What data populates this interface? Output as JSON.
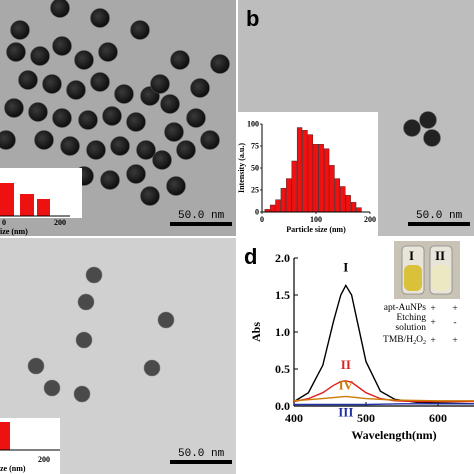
{
  "panels": {
    "a": {
      "scale_bar": "50.0 nm",
      "hist_xtick_0": "0",
      "hist_xtick_200": "200",
      "hist_xlabel_fragment": "ize (nm)"
    },
    "b": {
      "label": "b",
      "scale_bar": "50.0 nm"
    },
    "c": {
      "scale_bar": "50.0 nm",
      "hist_xlabel_fragment": "ze (nm)",
      "hist_xtick_200": "200"
    },
    "d": {
      "label": "d"
    }
  },
  "chart_data": [
    {
      "type": "bar",
      "panel": "b-inset",
      "xlabel": "Particle size (nm)",
      "ylabel": "Intensity (a.u.)",
      "xlim": [
        0,
        200
      ],
      "ylim": [
        0,
        100
      ],
      "xticks": [
        "0",
        "100",
        "200"
      ],
      "yticks": [
        "0",
        "25",
        "50",
        "75",
        "100"
      ],
      "x": [
        10,
        20,
        30,
        40,
        50,
        60,
        70,
        80,
        90,
        100,
        110,
        120,
        130,
        140,
        150,
        160,
        170,
        180
      ],
      "values": [
        3,
        8,
        14,
        27,
        38,
        58,
        96,
        93,
        88,
        77,
        77,
        72,
        53,
        38,
        29,
        19,
        11,
        5
      ],
      "color": "#ee1111"
    },
    {
      "type": "line",
      "panel": "d",
      "xlabel": "Wavelength(nm)",
      "ylabel": "Abs",
      "xlim": [
        400,
        650
      ],
      "ylim": [
        0.0,
        2.0
      ],
      "xticks": [
        "400",
        "500",
        "600"
      ],
      "yticks": [
        "0.0",
        "0.5",
        "1.0",
        "1.5",
        "2.0"
      ],
      "series": [
        {
          "name": "I",
          "color": "#000000",
          "x": [
            400,
            420,
            440,
            455,
            465,
            472,
            480,
            490,
            500,
            520,
            540,
            570,
            600,
            650
          ],
          "y": [
            0.06,
            0.18,
            0.55,
            1.15,
            1.5,
            1.63,
            1.5,
            1.05,
            0.6,
            0.2,
            0.09,
            0.05,
            0.04,
            0.03
          ]
        },
        {
          "name": "II",
          "color": "#dd2222",
          "x": [
            400,
            420,
            440,
            455,
            465,
            472,
            480,
            490,
            500,
            520,
            540,
            570,
            600,
            650
          ],
          "y": [
            0.06,
            0.1,
            0.18,
            0.28,
            0.33,
            0.34,
            0.32,
            0.25,
            0.18,
            0.1,
            0.07,
            0.06,
            0.06,
            0.06
          ]
        },
        {
          "name": "IV",
          "color": "#cc7a00",
          "x": [
            400,
            440,
            472,
            500,
            540,
            600,
            650
          ],
          "y": [
            0.07,
            0.1,
            0.13,
            0.1,
            0.08,
            0.07,
            0.07
          ]
        },
        {
          "name": "III",
          "color": "#2233aa",
          "x": [
            400,
            450,
            500,
            550,
            600,
            650
          ],
          "y": [
            0.02,
            0.02,
            0.02,
            0.03,
            0.03,
            0.03
          ]
        }
      ],
      "legend_table": {
        "columns": [
          "I",
          "II"
        ],
        "rows": [
          {
            "label": "apt-AuNPs",
            "values": [
              "+",
              "+"
            ]
          },
          {
            "label": "Etching solution",
            "values": [
              "+",
              "-"
            ]
          },
          {
            "label": "TMB/H2O2",
            "values": [
              "+",
              "+"
            ]
          }
        ]
      }
    }
  ]
}
